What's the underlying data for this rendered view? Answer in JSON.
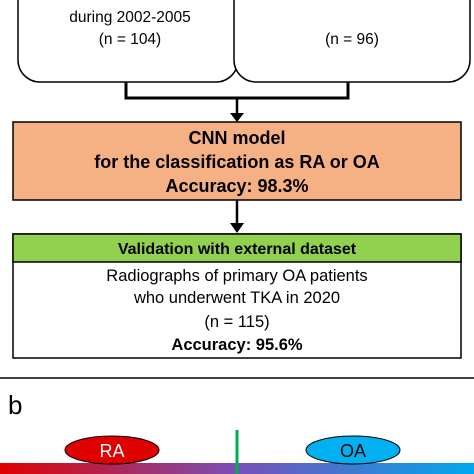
{
  "top_boxes": {
    "left": {
      "line1": "during 2002-2005",
      "line2": "(n = 104)"
    },
    "right": {
      "line1": "",
      "line2": "(n = 96)"
    }
  },
  "cnn_box": {
    "line1": "CNN model",
    "line2": "for the classification as RA or OA",
    "line3": "Accuracy: 98.3%",
    "fill_color": "#f5b183"
  },
  "validation_box": {
    "header": "Validation with external dataset",
    "header_color": "#92d050",
    "line1": "Radiographs of primary OA patients",
    "line2": "who underwent TKA in 2020",
    "line3": "(n = 115)",
    "line4": "Accuracy: 95.6%"
  },
  "panel_b": {
    "label": "b",
    "ra_label": "RA",
    "ra_color": "#e00000",
    "oa_label": "OA",
    "oa_color": "#00b0f0",
    "divider_color": "#00b050"
  }
}
